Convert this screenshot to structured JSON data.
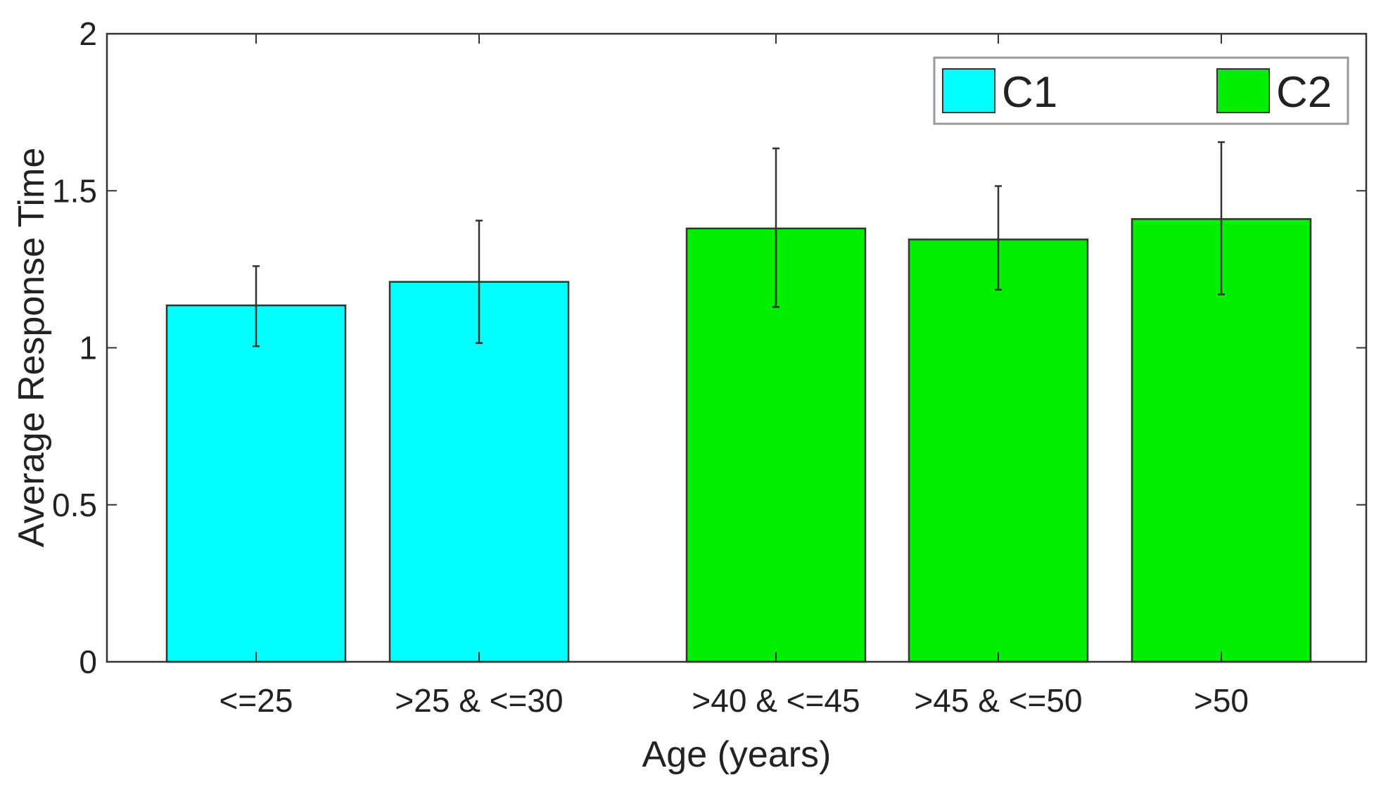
{
  "chart_data": {
    "type": "bar",
    "title": "",
    "xlabel": "Age (years)",
    "ylabel": "Average Response Time",
    "ylim": [
      0,
      2
    ],
    "yticks": [
      "0",
      "0.5",
      "1",
      "1.5",
      "2"
    ],
    "grid": false,
    "legend_position": "top-right",
    "categories": [
      "<=25",
      ">25 & <=30",
      ">40 & <=45",
      ">45 & <=50",
      ">50"
    ],
    "bars": [
      {
        "category": "<=25",
        "series": "C1",
        "value": 1.135,
        "err_low": 1.005,
        "err_high": 1.26
      },
      {
        "category": ">25 & <=30",
        "series": "C1",
        "value": 1.21,
        "err_low": 1.015,
        "err_high": 1.405
      },
      {
        "category": ">40 & <=45",
        "series": "C2",
        "value": 1.38,
        "err_low": 1.13,
        "err_high": 1.635
      },
      {
        "category": ">45 & <=50",
        "series": "C2",
        "value": 1.345,
        "err_low": 1.185,
        "err_high": 1.515
      },
      {
        "category": ">50",
        "series": "C2",
        "value": 1.41,
        "err_low": 1.17,
        "err_high": 1.655
      }
    ],
    "series": [
      {
        "name": "C1",
        "color": "#00ffff"
      },
      {
        "name": "C2",
        "color": "#00ee00"
      }
    ]
  }
}
